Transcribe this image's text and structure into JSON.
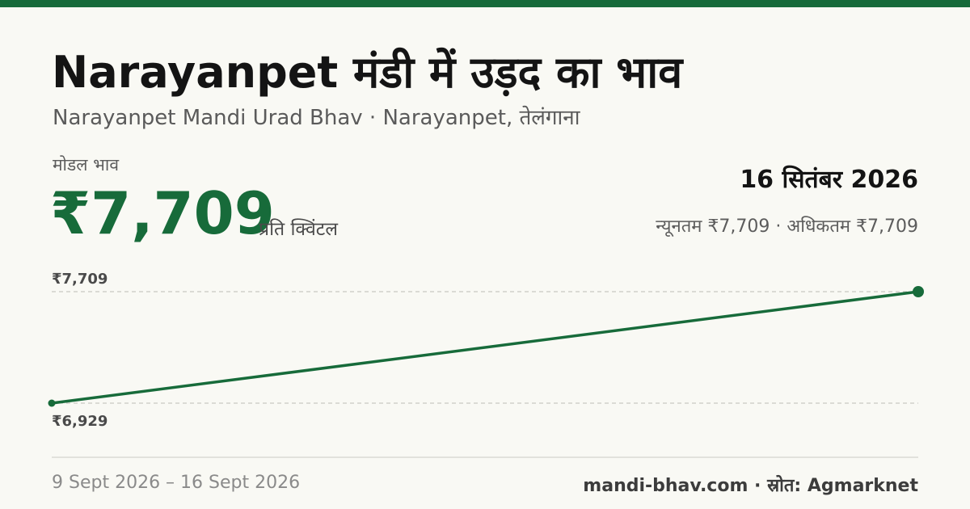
{
  "header": {
    "title": "Narayanpet मंडी में उड़द का भाव",
    "subtitle": "Narayanpet Mandi Urad Bhav · Narayanpet, तेलंगाना"
  },
  "price": {
    "label": "मोडल भाव",
    "value": "₹7,709",
    "unit": "प्रति क्विंटल"
  },
  "date": "16 सितंबर 2026",
  "minmax": "न्यूनतम ₹7,709 · अधिकतम ₹7,709",
  "footer": {
    "range": "9 Sept 2026 – 16 Sept 2026",
    "site": "mandi-bhav.com",
    "source": "स्रोत: Agmarknet"
  },
  "colors": {
    "accent": "#176b3a",
    "background": "#f9f9f4",
    "gridline": "#bdbdb6"
  },
  "chart_data": {
    "type": "line",
    "x": [
      "2026-09-09",
      "2026-09-16"
    ],
    "series": [
      {
        "values": [
          6929,
          7709
        ]
      }
    ],
    "ylim": [
      6929,
      7709
    ],
    "tick_labels": [
      "₹7,709",
      "₹6,929"
    ],
    "grid": true
  }
}
